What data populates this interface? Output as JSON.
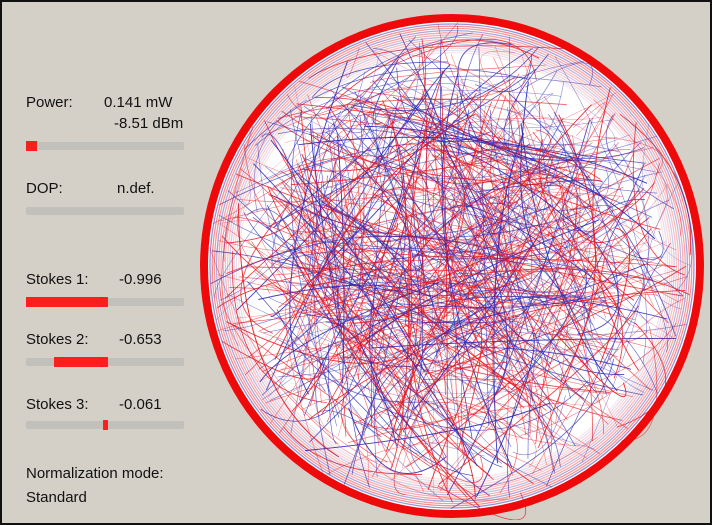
{
  "power": {
    "label": "Power:",
    "value_mw": "0.141 mW",
    "value_dbm": "-8.51 dBm",
    "level": 0.07
  },
  "dop": {
    "label": "DOP:",
    "value": "n.def."
  },
  "stokes": [
    {
      "label": "Stokes 1:",
      "value": "-0.996",
      "numeric": -0.996
    },
    {
      "label": "Stokes 2:",
      "value": "-0.653",
      "numeric": -0.653
    },
    {
      "label": "Stokes 3:",
      "value": "-0.061",
      "numeric": -0.061
    }
  ],
  "normalization": {
    "label": "Normalization mode:",
    "value": "Standard"
  },
  "colors": {
    "indicator": "#ff1e1e",
    "sphere_outline": "#ee0a0a",
    "trace_red": "#e8161c",
    "trace_blue": "#2a2ab8",
    "sphere_fill": "#ffffff",
    "background": "#d4d0c8"
  },
  "sphere": {
    "name": "poincare-sphere-trace"
  }
}
